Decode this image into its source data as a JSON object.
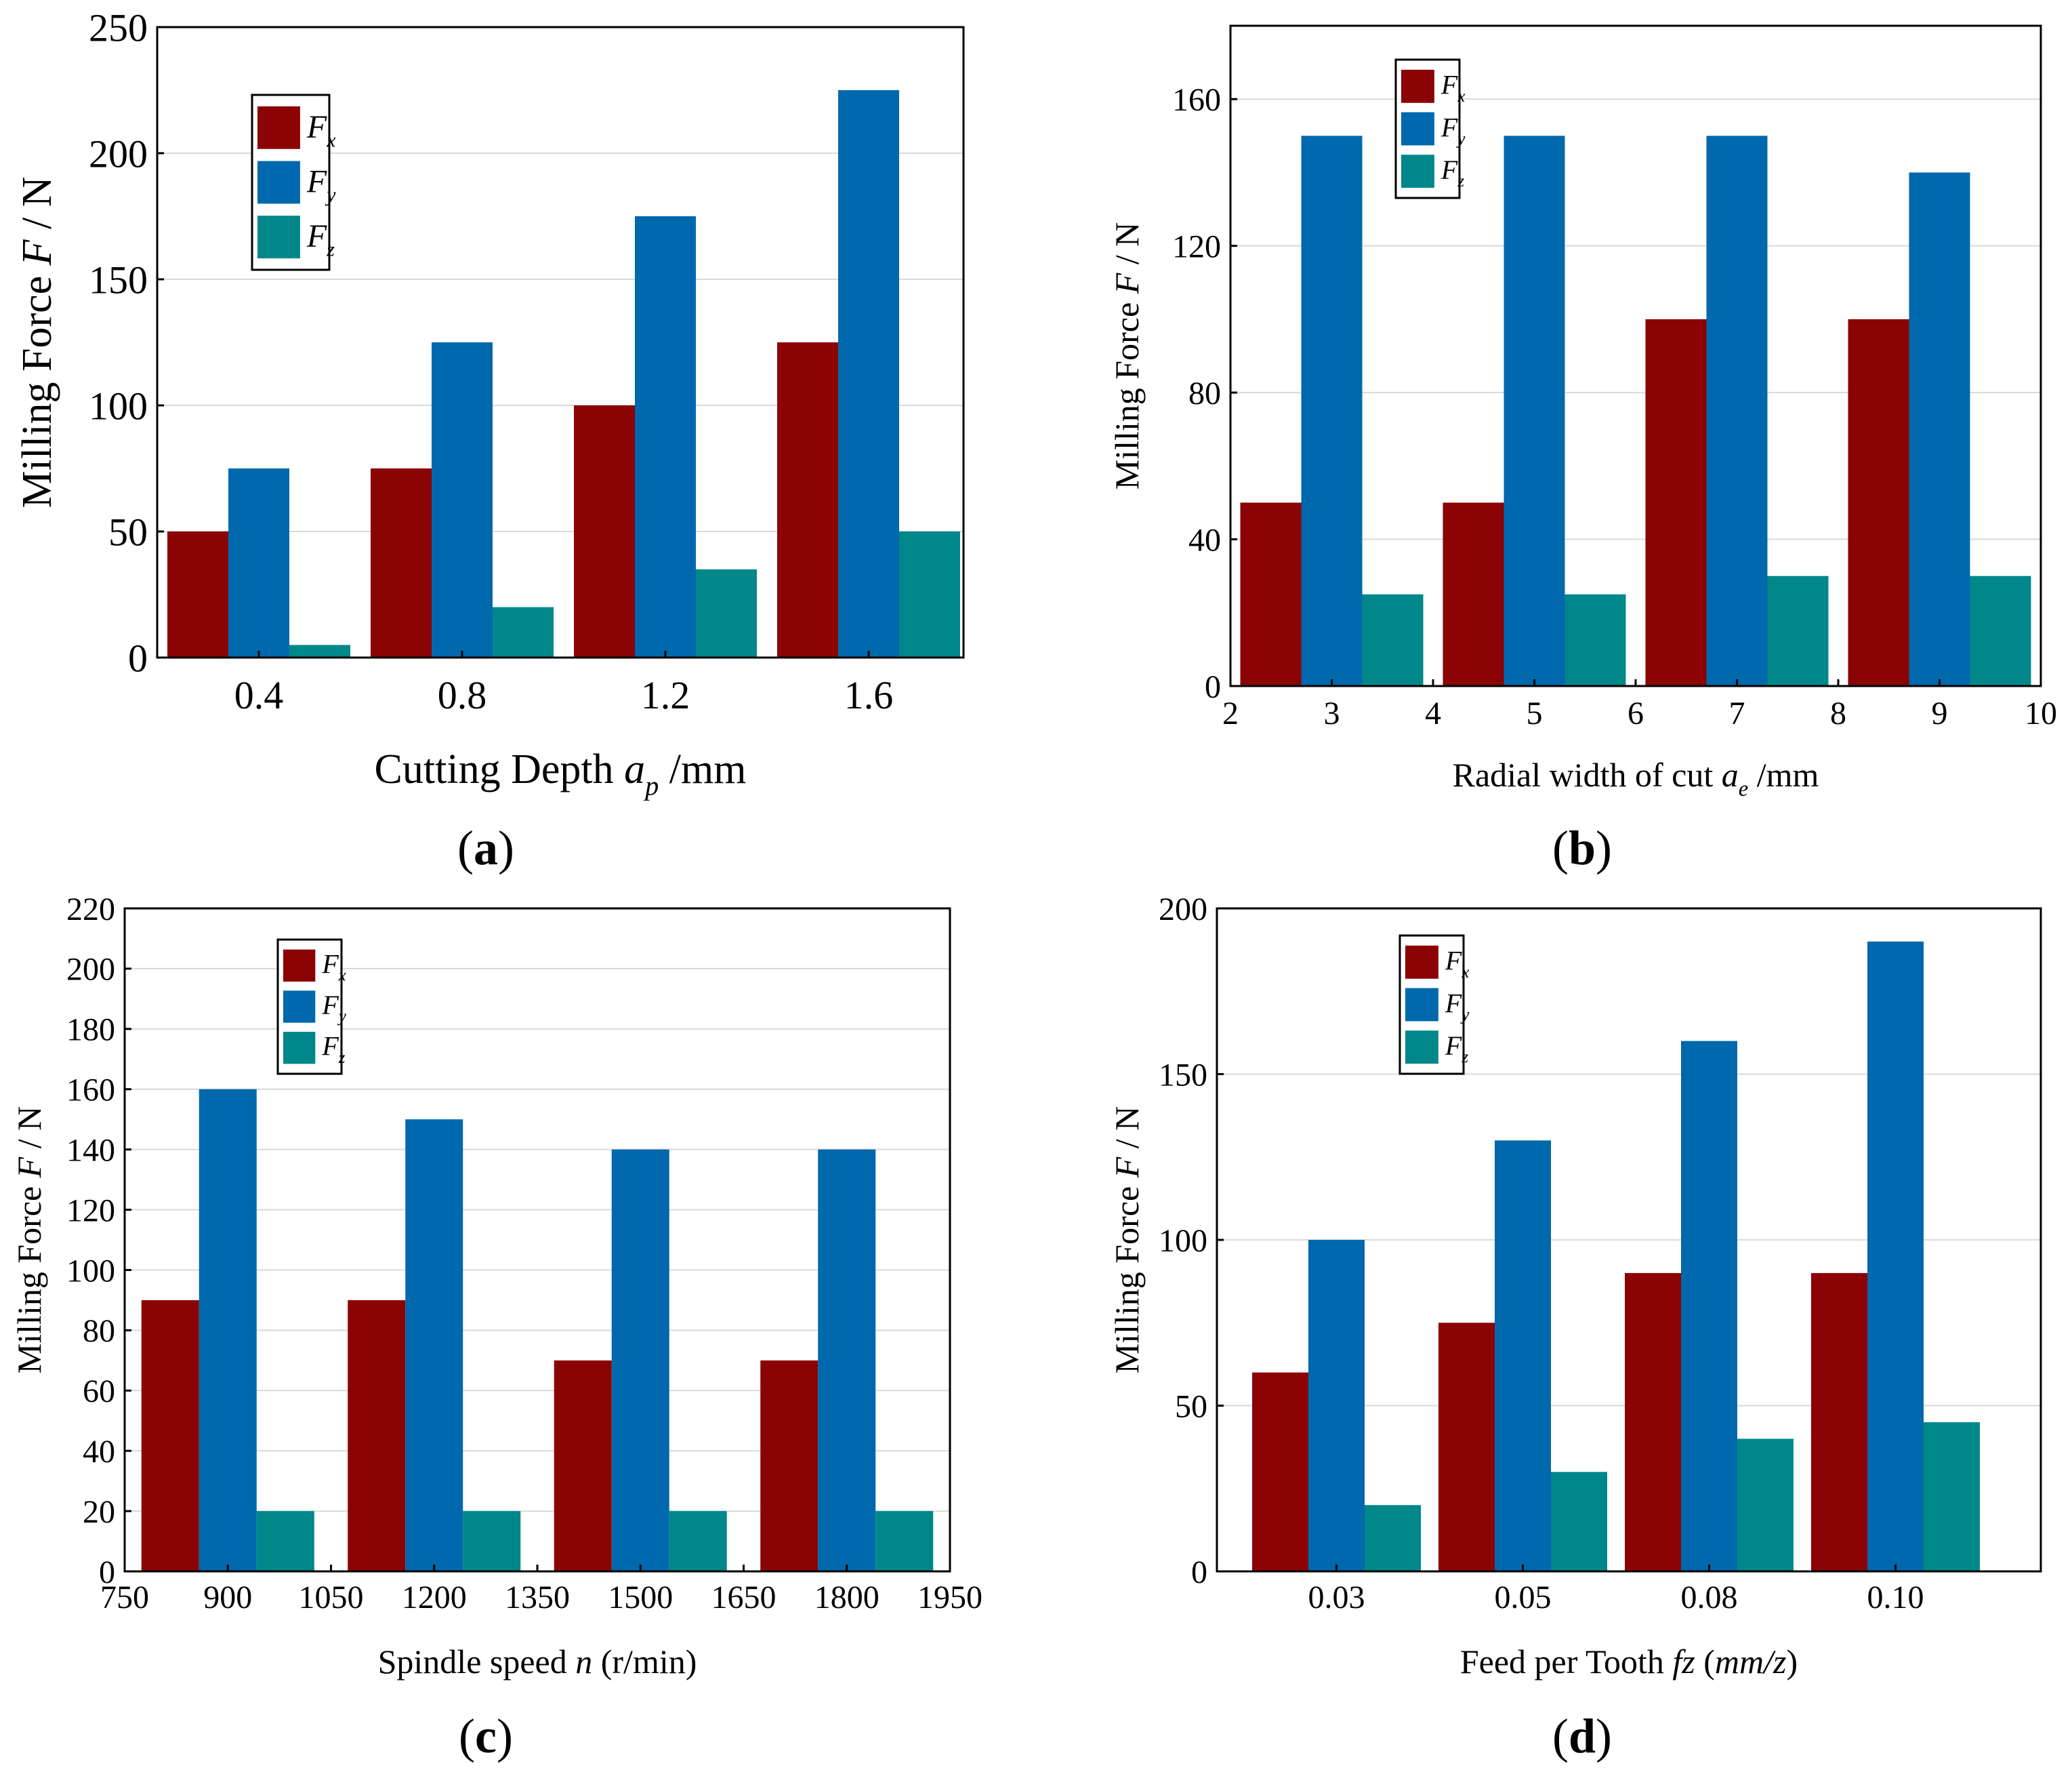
{
  "figure": {
    "panels": [
      {
        "letter": "a"
      },
      {
        "letter": "b"
      },
      {
        "letter": "c"
      },
      {
        "letter": "d"
      }
    ]
  },
  "colors": {
    "Fx": "#8b0304",
    "Fy": "#0068ac",
    "Fz": "#00878a"
  },
  "chart_data": [
    {
      "type": "bar",
      "panel": "a",
      "title": "",
      "ylabel": "Milling Force F / N",
      "xlabel": "Cutting Depth a_p /mm",
      "xlabel_parts": {
        "pre": "Cutting Depth ",
        "var": "a",
        "sub": "p",
        "post": "  /mm"
      },
      "categories": [
        "0.4",
        "0.8",
        "1.2",
        "1.6"
      ],
      "x_ticks": [
        "0.4",
        "0.8",
        "1.2",
        "1.6"
      ],
      "ylim": [
        0,
        250
      ],
      "y_ticks": [
        0,
        50,
        100,
        150,
        200,
        250
      ],
      "grid": true,
      "legend": "top-left",
      "legend_entries": [
        {
          "name": "F",
          "sub": "x"
        },
        {
          "name": "F",
          "sub": "y"
        },
        {
          "name": "F",
          "sub": "z"
        }
      ],
      "series": [
        {
          "name": "Fx",
          "values": [
            50,
            75,
            100,
            125
          ]
        },
        {
          "name": "Fy",
          "values": [
            75,
            125,
            175,
            225
          ]
        },
        {
          "name": "Fz",
          "values": [
            5,
            20,
            35,
            50
          ]
        }
      ]
    },
    {
      "type": "bar",
      "panel": "b",
      "title": "",
      "ylabel": "Milling Force F / N",
      "xlabel": "Radial width of cut a_e /mm",
      "xlabel_parts": {
        "pre": "Radial width of cut ",
        "var": "a",
        "sub": "e",
        "post": " /mm"
      },
      "categories": [
        "3",
        "5",
        "7",
        "9"
      ],
      "x_ticks": [
        "2",
        "3",
        "4",
        "5",
        "6",
        "7",
        "8",
        "9",
        "10"
      ],
      "xlim": [
        2,
        10
      ],
      "ylim": [
        0,
        180
      ],
      "y_ticks": [
        0,
        40,
        80,
        120,
        160
      ],
      "grid": true,
      "legend": "top-left",
      "legend_entries": [
        {
          "name": "F",
          "sub": "x"
        },
        {
          "name": "F",
          "sub": "y"
        },
        {
          "name": "F",
          "sub": "z"
        }
      ],
      "series": [
        {
          "name": "Fx",
          "values": [
            50,
            50,
            100,
            100
          ]
        },
        {
          "name": "Fy",
          "values": [
            150,
            150,
            150,
            140
          ]
        },
        {
          "name": "Fz",
          "values": [
            25,
            25,
            30,
            30
          ]
        }
      ]
    },
    {
      "type": "bar",
      "panel": "c",
      "title": "",
      "ylabel": "Milling Force F / N",
      "xlabel": "Spindle speed n (r/min)",
      "xlabel_parts": {
        "pre": "Spindle speed ",
        "var": "n",
        "sub": "",
        "post": " (r/min)"
      },
      "categories": [
        "900",
        "1200",
        "1500",
        "1800"
      ],
      "x_ticks": [
        "750",
        "900",
        "1050",
        "1200",
        "1350",
        "1500",
        "1650",
        "1800",
        "1950"
      ],
      "xlim": [
        750,
        1950
      ],
      "ylim": [
        0,
        220
      ],
      "y_ticks": [
        0,
        20,
        40,
        60,
        80,
        100,
        120,
        140,
        160,
        180,
        200,
        220
      ],
      "grid": true,
      "legend": "top-left",
      "legend_entries": [
        {
          "name": "F",
          "sub": "x"
        },
        {
          "name": "F",
          "sub": "y"
        },
        {
          "name": "F",
          "sub": "z"
        }
      ],
      "series": [
        {
          "name": "Fx",
          "values": [
            90,
            90,
            70,
            70
          ]
        },
        {
          "name": "Fy",
          "values": [
            160,
            150,
            140,
            140
          ]
        },
        {
          "name": "Fz",
          "values": [
            20,
            20,
            20,
            20
          ]
        }
      ]
    },
    {
      "type": "bar",
      "panel": "d",
      "title": "",
      "ylabel": "Milling Force F / N",
      "xlabel": "Feed per Tooth fz (mm/z)",
      "xlabel_parts": {
        "pre": "Feed per Tooth ",
        "var": "fz",
        "sub": "",
        "post": " (mm/z)",
        "post_italic_inner": "mm/z"
      },
      "categories": [
        "0.03",
        "0.05",
        "0.08",
        "0.10"
      ],
      "x_ticks": [
        "0.03",
        "0.05",
        "0.08",
        "0.10"
      ],
      "ylim": [
        0,
        200
      ],
      "y_ticks": [
        0,
        50,
        100,
        150,
        200
      ],
      "grid": true,
      "legend": "top-left",
      "legend_entries": [
        {
          "name": "F",
          "sub": "x"
        },
        {
          "name": "F",
          "sub": "y"
        },
        {
          "name": "F",
          "sub": "z"
        }
      ],
      "series": [
        {
          "name": "Fx",
          "values": [
            60,
            75,
            90,
            90
          ]
        },
        {
          "name": "Fy",
          "values": [
            100,
            130,
            160,
            190
          ]
        },
        {
          "name": "Fz",
          "values": [
            20,
            30,
            40,
            45
          ]
        }
      ]
    }
  ]
}
